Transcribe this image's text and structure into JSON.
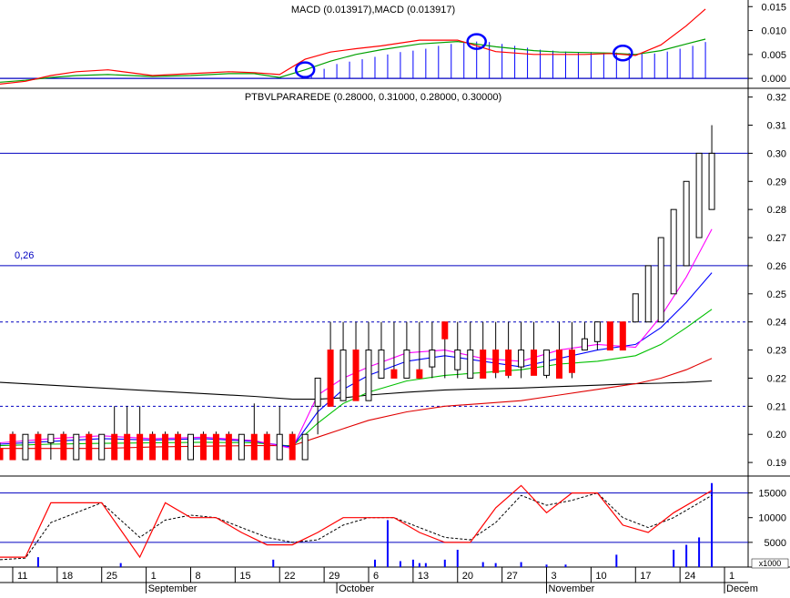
{
  "colors": {
    "background": "#ffffff",
    "axis": "#000000",
    "reference_line": "#0000c0",
    "macd_line": "#00a000",
    "signal_line": "#ff0000",
    "macd_bar": "#0000ff",
    "down_candle": "#ff0000",
    "ma_red": "#e00000",
    "ma_green": "#00c000",
    "ma_blue": "#0000ff",
    "ma_magenta": "#ff00ff",
    "ma_black": "#000000",
    "stoch_k": "#ff0000",
    "stoch_d": "#000000",
    "volume_bar": "#0000ff",
    "highlight_circle": "#0000ff"
  },
  "chart_data": [
    {
      "id": "macd",
      "type": "line",
      "title": "MACD (0.013917),MACD (0.013917)",
      "ylim": [
        -0.0015,
        0.016
      ],
      "y_ticks": [
        "0.000",
        "0.005",
        "0.010",
        "0.015"
      ],
      "y_tick_values": [
        0.0,
        0.005,
        0.01,
        0.015
      ],
      "reference_line": 0.0,
      "x_day": [
        0,
        4,
        8,
        12,
        17,
        24,
        30,
        36,
        40,
        44,
        48,
        52,
        56,
        60,
        66,
        72,
        78,
        84,
        88,
        92,
        96,
        100,
        104,
        108,
        111
      ],
      "series": [
        {
          "values": [
            -0.0008,
            -0.0004,
            0.0002,
            0.0006,
            0.0008,
            0.0004,
            0.0006,
            0.001,
            0.001,
            0.0002,
            0.0018,
            0.0036,
            0.005,
            0.006,
            0.0072,
            0.0077,
            0.0066,
            0.0058,
            0.0055,
            0.0054,
            0.0053,
            0.005,
            0.0058,
            0.0072,
            0.0082
          ]
        },
        {
          "values": [
            -0.0012,
            -0.0006,
            0.0006,
            0.0014,
            0.0018,
            0.0006,
            0.001,
            0.0014,
            0.0012,
            0.0008,
            0.004,
            0.0055,
            0.0062,
            0.0068,
            0.008,
            0.008,
            0.0056,
            0.005,
            0.005,
            0.005,
            0.0052,
            0.0048,
            0.007,
            0.011,
            0.0145
          ]
        }
      ],
      "histogram": {
        "x_day": [
          49,
          51,
          53,
          55,
          57,
          59,
          61,
          63,
          65,
          67,
          69,
          71,
          73,
          75,
          77,
          79,
          81,
          83,
          85,
          87,
          89,
          91,
          93,
          95,
          97,
          99,
          101,
          103,
          105,
          107,
          109,
          111
        ],
        "values": [
          0.001,
          0.002,
          0.003,
          0.0035,
          0.004,
          0.0045,
          0.005,
          0.0055,
          0.0058,
          0.0062,
          0.0068,
          0.0072,
          0.0075,
          0.0077,
          0.0076,
          0.0072,
          0.0068,
          0.0064,
          0.006,
          0.0058,
          0.0056,
          0.0055,
          0.0055,
          0.0054,
          0.0054,
          0.0053,
          0.0052,
          0.0052,
          0.0056,
          0.0062,
          0.0068,
          0.0076
        ]
      },
      "highlights_x_day": [
        48,
        75,
        98
      ]
    },
    {
      "id": "price",
      "type": "line",
      "title": "PTBVLPARAREDE (0.28000, 0.31000, 0.28000, 0.30000)",
      "ylim": [
        0.1855,
        0.3215
      ],
      "y_ticks": [
        "0.19",
        "0.20",
        "0.21",
        "0.22",
        "0.23",
        "0.24",
        "0.25",
        "0.26",
        "0.27",
        "0.28",
        "0.29",
        "0.30",
        "0.31",
        "0.32"
      ],
      "y_tick_values": [
        0.19,
        0.2,
        0.21,
        0.22,
        0.23,
        0.24,
        0.25,
        0.26,
        0.27,
        0.28,
        0.29,
        0.3,
        0.31,
        0.32
      ],
      "horizontal_lines": [
        {
          "value": 0.3,
          "style": "solid"
        },
        {
          "value": 0.26,
          "style": "solid",
          "label": "0,26"
        },
        {
          "value": 0.24,
          "style": "dashed"
        },
        {
          "value": 0.21,
          "style": "dashed"
        }
      ],
      "candles": {
        "x_day": [
          0,
          2,
          4,
          6,
          8,
          10,
          12,
          14,
          16,
          18,
          20,
          22,
          24,
          26,
          28,
          30,
          32,
          34,
          36,
          38,
          40,
          42,
          44,
          46,
          48,
          50,
          52,
          54,
          56,
          58,
          60,
          62,
          64,
          66,
          68,
          70,
          72,
          74,
          76,
          78,
          80,
          82,
          84,
          86,
          88,
          90,
          92,
          94,
          96,
          98,
          100,
          102,
          104,
          106,
          108,
          110,
          112
        ],
        "open": [
          0.195,
          0.2,
          0.191,
          0.2,
          0.197,
          0.2,
          0.191,
          0.2,
          0.191,
          0.2,
          0.2,
          0.2,
          0.2,
          0.2,
          0.2,
          0.191,
          0.2,
          0.2,
          0.2,
          0.191,
          0.2,
          0.2,
          0.191,
          0.2,
          0.191,
          0.21,
          0.23,
          0.212,
          0.23,
          0.212,
          0.22,
          0.223,
          0.22,
          0.223,
          0.224,
          0.24,
          0.223,
          0.22,
          0.23,
          0.23,
          0.23,
          0.224,
          0.23,
          0.221,
          0.23,
          0.23,
          0.23,
          0.233,
          0.24,
          0.24,
          0.24,
          0.24,
          0.24,
          0.25,
          0.26,
          0.27,
          0.28
        ],
        "high": [
          0.197,
          0.201,
          0.2,
          0.201,
          0.2,
          0.201,
          0.2,
          0.201,
          0.2,
          0.21,
          0.21,
          0.21,
          0.201,
          0.201,
          0.201,
          0.2,
          0.201,
          0.201,
          0.201,
          0.2,
          0.211,
          0.201,
          0.21,
          0.201,
          0.2,
          0.211,
          0.24,
          0.24,
          0.24,
          0.24,
          0.24,
          0.24,
          0.24,
          0.24,
          0.24,
          0.24,
          0.24,
          0.24,
          0.24,
          0.24,
          0.24,
          0.24,
          0.24,
          0.23,
          0.24,
          0.24,
          0.24,
          0.24,
          0.24,
          0.24,
          0.25,
          0.26,
          0.27,
          0.28,
          0.29,
          0.3,
          0.31
        ],
        "low": [
          0.191,
          0.191,
          0.191,
          0.191,
          0.191,
          0.191,
          0.191,
          0.191,
          0.191,
          0.191,
          0.191,
          0.191,
          0.191,
          0.191,
          0.191,
          0.191,
          0.191,
          0.191,
          0.191,
          0.191,
          0.191,
          0.191,
          0.191,
          0.191,
          0.191,
          0.2,
          0.21,
          0.212,
          0.212,
          0.212,
          0.22,
          0.22,
          0.22,
          0.22,
          0.22,
          0.22,
          0.22,
          0.22,
          0.22,
          0.22,
          0.22,
          0.22,
          0.221,
          0.22,
          0.22,
          0.22,
          0.23,
          0.23,
          0.23,
          0.23,
          0.24,
          0.25,
          0.26,
          0.27,
          0.28,
          0.28,
          0.28
        ],
        "close": [
          0.191,
          0.191,
          0.2,
          0.191,
          0.2,
          0.191,
          0.2,
          0.191,
          0.2,
          0.191,
          0.191,
          0.191,
          0.191,
          0.191,
          0.191,
          0.2,
          0.191,
          0.191,
          0.191,
          0.2,
          0.191,
          0.191,
          0.2,
          0.191,
          0.2,
          0.22,
          0.21,
          0.23,
          0.212,
          0.23,
          0.23,
          0.22,
          0.23,
          0.22,
          0.23,
          0.234,
          0.23,
          0.23,
          0.22,
          0.222,
          0.221,
          0.23,
          0.221,
          0.23,
          0.22,
          0.222,
          0.234,
          0.24,
          0.23,
          0.23,
          0.25,
          0.26,
          0.27,
          0.28,
          0.29,
          0.3,
          0.3
        ]
      },
      "moving_averages": {
        "x_day": [
          0,
          8,
          16,
          24,
          32,
          40,
          46,
          50,
          54,
          58,
          64,
          70,
          76,
          82,
          88,
          94,
          100,
          104,
          108,
          112
        ],
        "series": [
          {
            "color_key": "ma_black",
            "values": [
              0.2185,
              0.2175,
              0.2165,
              0.2155,
              0.2145,
              0.2135,
              0.2125,
              0.2125,
              0.213,
              0.214,
              0.215,
              0.2158,
              0.2162,
              0.2165,
              0.217,
              0.2175,
              0.218,
              0.2182,
              0.2185,
              0.219
            ]
          },
          {
            "color_key": "ma_red",
            "values": [
              0.195,
              0.195,
              0.195,
              0.1955,
              0.1958,
              0.196,
              0.196,
              0.199,
              0.202,
              0.205,
              0.208,
              0.21,
              0.211,
              0.212,
              0.214,
              0.216,
              0.218,
              0.22,
              0.223,
              0.227
            ]
          },
          {
            "color_key": "ma_green",
            "values": [
              0.196,
              0.1965,
              0.1968,
              0.197,
              0.1972,
              0.197,
              0.1958,
              0.204,
              0.211,
              0.215,
              0.219,
              0.221,
              0.222,
              0.223,
              0.225,
              0.226,
              0.228,
              0.232,
              0.238,
              0.2445
            ]
          },
          {
            "color_key": "ma_blue",
            "values": [
              0.1965,
              0.1975,
              0.1985,
              0.198,
              0.1985,
              0.1975,
              0.1955,
              0.208,
              0.216,
              0.221,
              0.226,
              0.228,
              0.226,
              0.224,
              0.227,
              0.23,
              0.232,
              0.238,
              0.247,
              0.2575
            ]
          },
          {
            "color_key": "ma_magenta",
            "values": [
              0.197,
              0.1985,
              0.1995,
              0.1985,
              0.199,
              0.1978,
              0.195,
              0.214,
              0.22,
              0.224,
              0.229,
              0.23,
              0.227,
              0.226,
              0.23,
              0.232,
              0.231,
              0.242,
              0.256,
              0.273
            ]
          }
        ]
      }
    },
    {
      "id": "stochastic_volume",
      "type": "line",
      "ylim": [
        0,
        17500
      ],
      "y_ticks": [
        "5000",
        "10000",
        "15000"
      ],
      "y_tick_values": [
        5000,
        10000,
        15000
      ],
      "unit_label": "x1000",
      "reference_lines": [
        15000,
        5000
      ],
      "x_day": [
        0,
        4,
        8,
        16,
        22,
        26,
        30,
        34,
        38,
        42,
        46,
        50,
        54,
        58,
        62,
        66,
        70,
        74,
        78,
        82,
        86,
        90,
        94,
        98,
        102,
        106,
        112
      ],
      "series": [
        {
          "color_key": "stoch_k",
          "values": [
            2000,
            2000,
            13000,
            13000,
            2000,
            13000,
            10000,
            10000,
            7000,
            4500,
            4500,
            7000,
            10000,
            10000,
            10000,
            7000,
            5000,
            5000,
            12000,
            16500,
            11000,
            15000,
            15000,
            8500,
            7000,
            11000,
            15500
          ]
        },
        {
          "color_key": "stoch_d",
          "values": [
            1500,
            1800,
            9000,
            13000,
            6000,
            9500,
            10500,
            10000,
            8000,
            6000,
            5000,
            5500,
            8500,
            10000,
            10000,
            8000,
            6000,
            5500,
            9000,
            14500,
            12500,
            13500,
            15000,
            10000,
            8000,
            10000,
            14500
          ]
        }
      ],
      "volume": {
        "x_day": [
          6,
          19,
          43,
          59,
          61,
          63,
          65,
          66,
          67,
          70,
          72,
          76,
          78,
          82,
          86,
          89,
          97,
          106,
          108,
          110,
          112
        ],
        "values": [
          2000,
          800,
          1500,
          1500,
          9500,
          1200,
          1500,
          800,
          800,
          1500,
          3500,
          1000,
          800,
          1000,
          500,
          500,
          2500,
          3500,
          4500,
          6000,
          17000
        ]
      }
    }
  ],
  "x_axis": {
    "ticks": [
      {
        "label": "11",
        "day": 2
      },
      {
        "label": "18",
        "day": 9
      },
      {
        "label": "25",
        "day": 16
      },
      {
        "label": "1",
        "day": 23
      },
      {
        "label": "8",
        "day": 30
      },
      {
        "label": "15",
        "day": 37
      },
      {
        "label": "22",
        "day": 44
      },
      {
        "label": "29",
        "day": 51
      },
      {
        "label": "6",
        "day": 58
      },
      {
        "label": "13",
        "day": 65
      },
      {
        "label": "20",
        "day": 72
      },
      {
        "label": "27",
        "day": 79
      },
      {
        "label": "3",
        "day": 86
      },
      {
        "label": "10",
        "day": 93
      },
      {
        "label": "17",
        "day": 100
      },
      {
        "label": "24",
        "day": 107
      },
      {
        "label": "1",
        "day": 114
      }
    ],
    "months": [
      {
        "label": "September",
        "day": 23
      },
      {
        "label": "October",
        "day": 53
      },
      {
        "label": "November",
        "day": 86
      },
      {
        "label": "Decem",
        "day": 114
      }
    ]
  }
}
